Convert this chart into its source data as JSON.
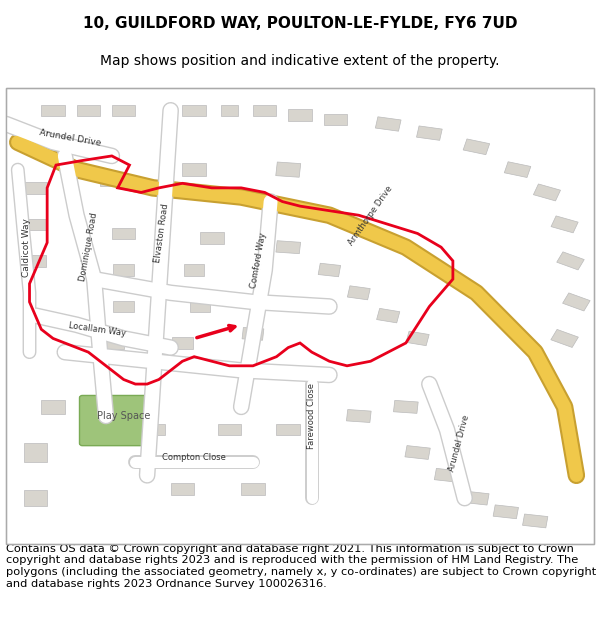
{
  "title": "10, GUILDFORD WAY, POULTON-LE-FYLDE, FY6 7UD",
  "subtitle": "Map shows position and indicative extent of the property.",
  "copyright_text": "Contains OS data © Crown copyright and database right 2021. This information is subject to Crown copyright and database rights 2023 and is reproduced with the permission of HM Land Registry. The polygons (including the associated geometry, namely x, y co-ordinates) are subject to Crown copyright and database rights 2023 Ordnance Survey 100026316.",
  "title_fontsize": 11,
  "subtitle_fontsize": 10,
  "copyright_fontsize": 8.2,
  "background_color": "#ffffff",
  "map_bg": "#f0ede8",
  "road_color_yellow": "#f5d97a",
  "road_color_white": "#ffffff",
  "building_color": "#d8d5ce",
  "building_edge": "#bbbbbb",
  "green_area": "#8db87a",
  "red_outline": "#e8001c",
  "map_border": "#cccccc",
  "figsize": [
    6.0,
    6.25
  ],
  "dpi": 100
}
